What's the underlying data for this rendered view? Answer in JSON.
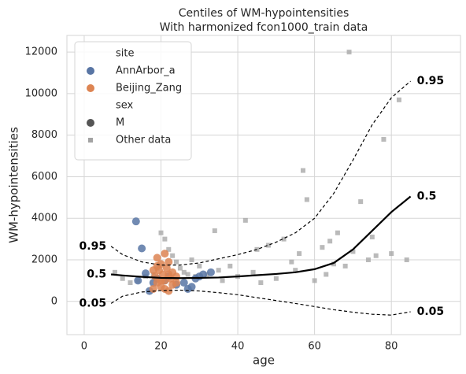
{
  "chart_data": {
    "type": "scatter",
    "title": "Centiles of WM-hypointensities",
    "subtitle": "With harmonized fcon1000_train data",
    "x_label": "age",
    "y_label": "WM-hypointensities",
    "xlim": [
      -4.5,
      98
    ],
    "ylim": [
      -1600,
      12800
    ],
    "xticks": [
      0,
      20,
      40,
      60,
      80
    ],
    "yticks": [
      0,
      2000,
      4000,
      6000,
      8000,
      10000,
      12000
    ],
    "grid": true,
    "legend": {
      "corner": "upper left",
      "site_title": "site",
      "sex_title": "sex",
      "sex_entries": [
        "M"
      ],
      "sex_color": "#555555"
    },
    "series": [
      {
        "name": "Other data",
        "color": "#a3a3a3",
        "marker": "square",
        "x": [
          8,
          10,
          12,
          14,
          16,
          18,
          19,
          20,
          21,
          22,
          23,
          24,
          25,
          26,
          27,
          28,
          29,
          30,
          32,
          34,
          35,
          36,
          38,
          40,
          42,
          44,
          45,
          46,
          48,
          50,
          52,
          54,
          55,
          56,
          57,
          58,
          60,
          62,
          63,
          64,
          65,
          66,
          68,
          69,
          70,
          72,
          74,
          75,
          76,
          78,
          80,
          82,
          84
        ],
        "values": [
          1400,
          1100,
          900,
          1000,
          1200,
          1300,
          1600,
          3300,
          3000,
          2500,
          2200,
          1900,
          1600,
          1400,
          1300,
          2000,
          1200,
          1700,
          1300,
          3400,
          1500,
          1000,
          1700,
          1200,
          3900,
          1400,
          2500,
          900,
          2700,
          1100,
          3000,
          1900,
          1500,
          2300,
          6300,
          4900,
          1000,
          2600,
          1300,
          2900,
          1800,
          3300,
          1700,
          12000,
          2400,
          4800,
          2000,
          3100,
          2200,
          7800,
          2300,
          9700,
          2000
        ]
      },
      {
        "name": "AnnArbor_a",
        "color": "#5875a4",
        "marker": "circle",
        "x": [
          13.5,
          15,
          14,
          16,
          17,
          18,
          19,
          22,
          24,
          26,
          28,
          29,
          30,
          31,
          33,
          27,
          21
        ],
        "values": [
          3850,
          2550,
          1000,
          1350,
          500,
          900,
          1100,
          1200,
          800,
          900,
          700,
          1100,
          1200,
          1300,
          1400,
          600,
          1000
        ]
      },
      {
        "name": "Beijing_Zang",
        "color": "#dd8452",
        "marker": "circle",
        "x": [
          18,
          18.5,
          19,
          19,
          19.5,
          20,
          20,
          20.5,
          21,
          21,
          21.5,
          22,
          22,
          22.5,
          23,
          23,
          24,
          19,
          20,
          21,
          22,
          18,
          24
        ],
        "values": [
          600,
          1200,
          2100,
          900,
          1500,
          1800,
          700,
          1300,
          2300,
          1000,
          1600,
          1900,
          500,
          1100,
          1400,
          800,
          1200,
          1700,
          1000,
          600,
          1300,
          1500,
          900
        ]
      }
    ],
    "centiles": [
      {
        "name": "0.05",
        "color": "#000000",
        "dashed": true,
        "x": [
          7,
          10,
          15,
          20,
          25,
          30,
          35,
          40,
          45,
          50,
          55,
          60,
          65,
          70,
          75,
          80,
          85
        ],
        "values": [
          -100,
          250,
          450,
          520,
          540,
          500,
          420,
          320,
          180,
          40,
          -100,
          -250,
          -400,
          -520,
          -620,
          -660,
          -500
        ]
      },
      {
        "name": "0.5",
        "color": "#000000",
        "dashed": false,
        "x": [
          7,
          10,
          15,
          20,
          25,
          30,
          35,
          40,
          45,
          50,
          55,
          60,
          65,
          70,
          75,
          80,
          85
        ],
        "values": [
          1300,
          1250,
          1180,
          1130,
          1120,
          1130,
          1150,
          1200,
          1260,
          1320,
          1400,
          1550,
          1850,
          2500,
          3400,
          4300,
          5050
        ]
      },
      {
        "name": "0.95",
        "color": "#000000",
        "dashed": true,
        "x": [
          7,
          10,
          15,
          20,
          25,
          30,
          35,
          40,
          45,
          50,
          55,
          60,
          65,
          70,
          75,
          80,
          85
        ],
        "values": [
          2650,
          2250,
          1900,
          1750,
          1750,
          1850,
          2050,
          2250,
          2500,
          2850,
          3300,
          4000,
          5200,
          6800,
          8500,
          9800,
          10600
        ]
      }
    ]
  }
}
